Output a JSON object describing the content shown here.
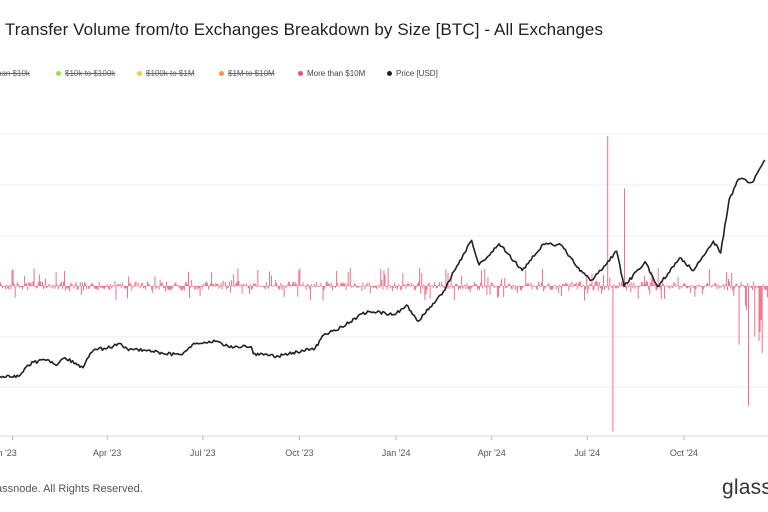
{
  "chart_data": {
    "type": "bar+line",
    "title": "et Transfer Volume from/to Exchanges Breakdown by Size [BTC] - All Exchanges",
    "legend": [
      {
        "label": "han $10k",
        "color": "#7fd66a",
        "active": false
      },
      {
        "label": "$10k to $100k",
        "color": "#9ee04a",
        "active": false
      },
      {
        "label": "$100k to $1M",
        "color": "#f2c94c",
        "active": false
      },
      {
        "label": "$1M to $10M",
        "color": "#f2994a",
        "active": false
      },
      {
        "label": "More than $10M",
        "color": "#f0506e",
        "active": true
      },
      {
        "label": "Price [USD]",
        "color": "#222222",
        "active": true
      }
    ],
    "x_ticks": [
      "an '23",
      "Apr '23",
      "Jul '23",
      "Oct '23",
      "Jan '24",
      "Apr '24",
      "Jul '24",
      "Oct '24"
    ],
    "x_range": [
      "2022-12-20",
      "2024-12-20"
    ],
    "series": [
      {
        "name": "More than $10M",
        "kind": "bar",
        "color": "#f0506e",
        "note": "daily net transfer volume, relative scale (peak up ≈ +1.0, peak down ≈ -0.97)",
        "highlights": [
          {
            "x": "2024-07-20",
            "value": 1.0
          },
          {
            "x": "2024-07-25",
            "value": -0.97
          },
          {
            "x": "2024-08-05",
            "value": 0.65
          },
          {
            "x": "2024-12-01",
            "value": -0.8
          }
        ]
      },
      {
        "name": "Price [USD]",
        "kind": "line",
        "color": "#222222",
        "points": [
          [
            "2022-12-20",
            16800
          ],
          [
            "2022-12-31",
            16550
          ],
          [
            "2023-01-08",
            17200
          ],
          [
            "2023-01-14",
            20800
          ],
          [
            "2023-01-21",
            22700
          ],
          [
            "2023-02-02",
            23400
          ],
          [
            "2023-02-13",
            21800
          ],
          [
            "2023-02-20",
            24500
          ],
          [
            "2023-03-09",
            20400
          ],
          [
            "2023-03-13",
            24200
          ],
          [
            "2023-03-20",
            28000
          ],
          [
            "2023-04-01",
            28400
          ],
          [
            "2023-04-13",
            30400
          ],
          [
            "2023-04-20",
            28200
          ],
          [
            "2023-05-10",
            27600
          ],
          [
            "2023-05-24",
            26300
          ],
          [
            "2023-06-10",
            25800
          ],
          [
            "2023-06-21",
            29900
          ],
          [
            "2023-07-01",
            30500
          ],
          [
            "2023-07-13",
            31300
          ],
          [
            "2023-07-25",
            29200
          ],
          [
            "2023-08-16",
            29100
          ],
          [
            "2023-08-18",
            26200
          ],
          [
            "2023-09-11",
            25100
          ],
          [
            "2023-09-29",
            26900
          ],
          [
            "2023-10-16",
            28500
          ],
          [
            "2023-10-24",
            33900
          ],
          [
            "2023-11-10",
            37300
          ],
          [
            "2023-12-05",
            43800
          ],
          [
            "2023-12-31",
            42300
          ],
          [
            "2024-01-11",
            46300
          ],
          [
            "2024-01-22",
            39600
          ],
          [
            "2024-02-15",
            51900
          ],
          [
            "2024-02-28",
            62500
          ],
          [
            "2024-03-13",
            73000
          ],
          [
            "2024-03-20",
            62900
          ],
          [
            "2024-04-08",
            71600
          ],
          [
            "2024-04-30",
            60600
          ],
          [
            "2024-05-20",
            71400
          ],
          [
            "2024-06-06",
            71100
          ],
          [
            "2024-06-24",
            60300
          ],
          [
            "2024-07-05",
            56600
          ],
          [
            "2024-07-14",
            60600
          ],
          [
            "2024-07-29",
            68500
          ],
          [
            "2024-08-05",
            54000
          ],
          [
            "2024-08-25",
            64200
          ],
          [
            "2024-09-06",
            53900
          ],
          [
            "2024-09-27",
            65700
          ],
          [
            "2024-10-10",
            60500
          ],
          [
            "2024-10-29",
            72700
          ],
          [
            "2024-11-05",
            67800
          ],
          [
            "2024-11-13",
            89800
          ],
          [
            "2024-11-22",
            98300
          ],
          [
            "2024-12-05",
            97000
          ],
          [
            "2024-12-17",
            106200
          ]
        ]
      }
    ],
    "grid": true
  },
  "footer": {
    "copyright": "assnode. All Rights Reserved.",
    "logo": "glass"
  }
}
